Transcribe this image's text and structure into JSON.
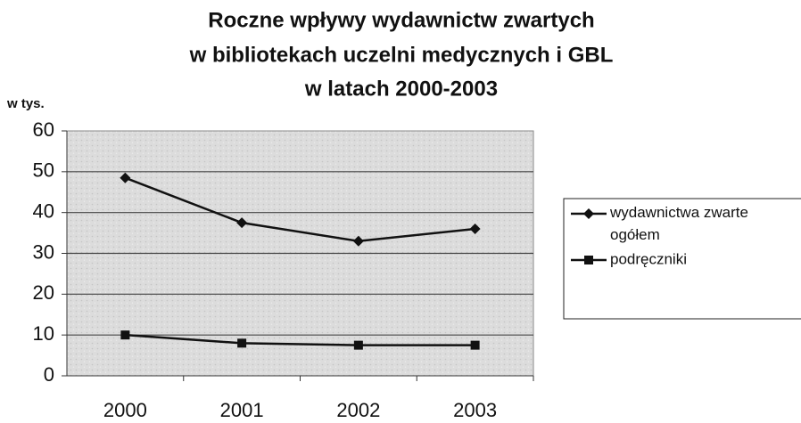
{
  "chart_data": {
    "type": "line",
    "title": [
      "Roczne wpływy wydawnictw zwartych",
      "w bibliotekach uczelni medycznych i GBL",
      "w latach 2000-2003"
    ],
    "y_label": "w tys.",
    "categories": [
      "2000",
      "2001",
      "2002",
      "2003"
    ],
    "series": [
      {
        "name": "wydawnictwa zwarte ogółem",
        "color": "#111111",
        "marker": "diamond",
        "values": [
          48.5,
          37.5,
          33,
          36
        ]
      },
      {
        "name": "podręczniki",
        "color": "#111111",
        "marker": "square",
        "values": [
          10,
          8,
          7.5,
          7.5
        ]
      }
    ],
    "ylim": [
      0,
      60
    ],
    "yticks": [
      0,
      10,
      20,
      30,
      40,
      50,
      60
    ],
    "grid": true,
    "legend": "right"
  }
}
